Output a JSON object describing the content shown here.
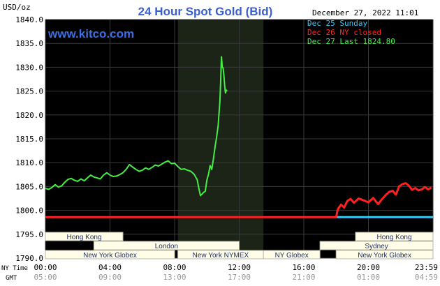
{
  "header": {
    "title": "24 Hour Spot Gold (Bid)",
    "date_text": "December 27, 2022 11:01",
    "watermark": "www.kitco.com",
    "y_unit": "USD/oz"
  },
  "legend": {
    "items": [
      {
        "label": "Dec 25 Sunday",
        "color": "#34c6f4"
      },
      {
        "label": "Dec 26 NY closed",
        "color": "#ff2020"
      },
      {
        "label": "Dec 27 Last 1824.80",
        "color": "#44ee44"
      }
    ]
  },
  "axis_labels": {
    "ny_time": "NY Time",
    "gmt": "GMT",
    "ny_ticks": [
      "00:00",
      "04:00",
      "08:00",
      "12:00",
      "16:00",
      "20:00",
      "23:59"
    ],
    "gmt_ticks": [
      "05:00",
      "09:00",
      "13:00",
      "17:00",
      "21:00",
      "01:00",
      "04:59"
    ]
  },
  "sessions": {
    "left": [
      {
        "label": "Hong Kong",
        "row": 0,
        "start": 0,
        "end": 4.8
      },
      {
        "label": "London",
        "row": 1,
        "start": 3,
        "end": 12
      },
      {
        "label": "New York Globex",
        "row": 2,
        "start": 0,
        "end": 8
      },
      {
        "label": "New York NYMEX",
        "row": 2,
        "start": 8.2,
        "end": 13.5
      },
      {
        "label": "NY Globex",
        "row": 2,
        "start": 13.5,
        "end": 17
      }
    ],
    "right": [
      {
        "label": "Hong Kong",
        "row": 0,
        "start": 19.2,
        "end": 24
      },
      {
        "label": "Sydney",
        "row": 1,
        "start": 17,
        "end": 24
      },
      {
        "label": "New York Globex",
        "row": 2,
        "start": 18,
        "end": 24
      }
    ]
  },
  "chart_data": {
    "type": "line",
    "title": "24 Hour Spot Gold (Bid)",
    "ylabel": "USD/oz",
    "xlabel": "NY Time",
    "x_range_hours": [
      0,
      24
    ],
    "ylim": [
      1790,
      1840
    ],
    "y_ticks": [
      1790,
      1795,
      1800,
      1805,
      1810,
      1815,
      1820,
      1825,
      1830,
      1835,
      1840
    ],
    "grid": true,
    "legend_placement": "top-right",
    "shaded_region_hours": [
      8.2,
      13.5
    ],
    "series": [
      {
        "name": "Dec 25 Sunday",
        "color": "#34c6f4",
        "points": [
          [
            18,
            1798.6
          ],
          [
            24,
            1798.6
          ]
        ]
      },
      {
        "name": "Dec 26 NY closed",
        "color": "#ff2020",
        "points": [
          [
            0,
            1798.6
          ],
          [
            18,
            1798.6
          ],
          [
            18.1,
            1800.2
          ],
          [
            18.3,
            1801.2
          ],
          [
            18.5,
            1800.6
          ],
          [
            18.7,
            1802.0
          ],
          [
            18.9,
            1802.4
          ],
          [
            19.1,
            1801.6
          ],
          [
            19.4,
            1802.5
          ],
          [
            19.7,
            1802.1
          ],
          [
            20.0,
            1801.7
          ],
          [
            20.3,
            1802.6
          ],
          [
            20.6,
            1801.3
          ],
          [
            20.8,
            1802.2
          ],
          [
            21.1,
            1803.3
          ],
          [
            21.3,
            1803.9
          ],
          [
            21.5,
            1804.1
          ],
          [
            21.7,
            1803.3
          ],
          [
            21.9,
            1805.0
          ],
          [
            22.1,
            1805.5
          ],
          [
            22.3,
            1805.7
          ],
          [
            22.5,
            1805.2
          ],
          [
            22.7,
            1804.3
          ],
          [
            22.9,
            1804.7
          ],
          [
            23.1,
            1804.2
          ],
          [
            23.3,
            1804.4
          ],
          [
            23.5,
            1804.9
          ],
          [
            23.7,
            1804.4
          ],
          [
            23.9,
            1804.8
          ]
        ]
      },
      {
        "name": "Dec 27 Last 1824.80",
        "color": "#44ee44",
        "points": [
          [
            0.0,
            1804.6
          ],
          [
            0.2,
            1804.4
          ],
          [
            0.4,
            1804.8
          ],
          [
            0.6,
            1805.4
          ],
          [
            0.8,
            1804.9
          ],
          [
            1.0,
            1805.1
          ],
          [
            1.2,
            1805.9
          ],
          [
            1.4,
            1806.5
          ],
          [
            1.6,
            1806.7
          ],
          [
            1.8,
            1806.3
          ],
          [
            2.0,
            1806.1
          ],
          [
            2.2,
            1806.6
          ],
          [
            2.4,
            1806.2
          ],
          [
            2.6,
            1806.8
          ],
          [
            2.8,
            1807.4
          ],
          [
            3.0,
            1807.0
          ],
          [
            3.2,
            1806.8
          ],
          [
            3.4,
            1806.6
          ],
          [
            3.6,
            1807.4
          ],
          [
            3.8,
            1807.9
          ],
          [
            4.0,
            1807.4
          ],
          [
            4.2,
            1807.1
          ],
          [
            4.4,
            1807.2
          ],
          [
            4.6,
            1807.5
          ],
          [
            4.8,
            1807.9
          ],
          [
            5.0,
            1808.6
          ],
          [
            5.2,
            1809.6
          ],
          [
            5.4,
            1809.1
          ],
          [
            5.6,
            1808.6
          ],
          [
            5.8,
            1808.2
          ],
          [
            6.0,
            1808.4
          ],
          [
            6.2,
            1808.9
          ],
          [
            6.4,
            1808.6
          ],
          [
            6.6,
            1809.0
          ],
          [
            6.8,
            1809.5
          ],
          [
            7.0,
            1809.3
          ],
          [
            7.2,
            1809.7
          ],
          [
            7.4,
            1810.1
          ],
          [
            7.6,
            1810.4
          ],
          [
            7.8,
            1809.8
          ],
          [
            8.0,
            1809.9
          ],
          [
            8.2,
            1809.2
          ],
          [
            8.4,
            1808.6
          ],
          [
            8.6,
            1808.7
          ],
          [
            8.8,
            1808.4
          ],
          [
            9.0,
            1808.2
          ],
          [
            9.2,
            1807.6
          ],
          [
            9.4,
            1806.4
          ],
          [
            9.5,
            1804.6
          ],
          [
            9.6,
            1803.1
          ],
          [
            9.7,
            1803.4
          ],
          [
            9.8,
            1803.8
          ],
          [
            9.9,
            1804.0
          ],
          [
            10.0,
            1806.4
          ],
          [
            10.1,
            1807.6
          ],
          [
            10.2,
            1809.4
          ],
          [
            10.3,
            1808.6
          ],
          [
            10.4,
            1810.7
          ],
          [
            10.5,
            1813.2
          ],
          [
            10.6,
            1815.3
          ],
          [
            10.7,
            1817.8
          ],
          [
            10.75,
            1820.4
          ],
          [
            10.8,
            1822.7
          ],
          [
            10.85,
            1826.8
          ],
          [
            10.9,
            1832.2
          ],
          [
            10.95,
            1830.0
          ],
          [
            11.0,
            1829.9
          ],
          [
            11.05,
            1828.4
          ],
          [
            11.1,
            1826.1
          ],
          [
            11.15,
            1824.6
          ],
          [
            11.2,
            1825.2
          ],
          [
            11.25,
            1825.0
          ]
        ]
      }
    ]
  }
}
